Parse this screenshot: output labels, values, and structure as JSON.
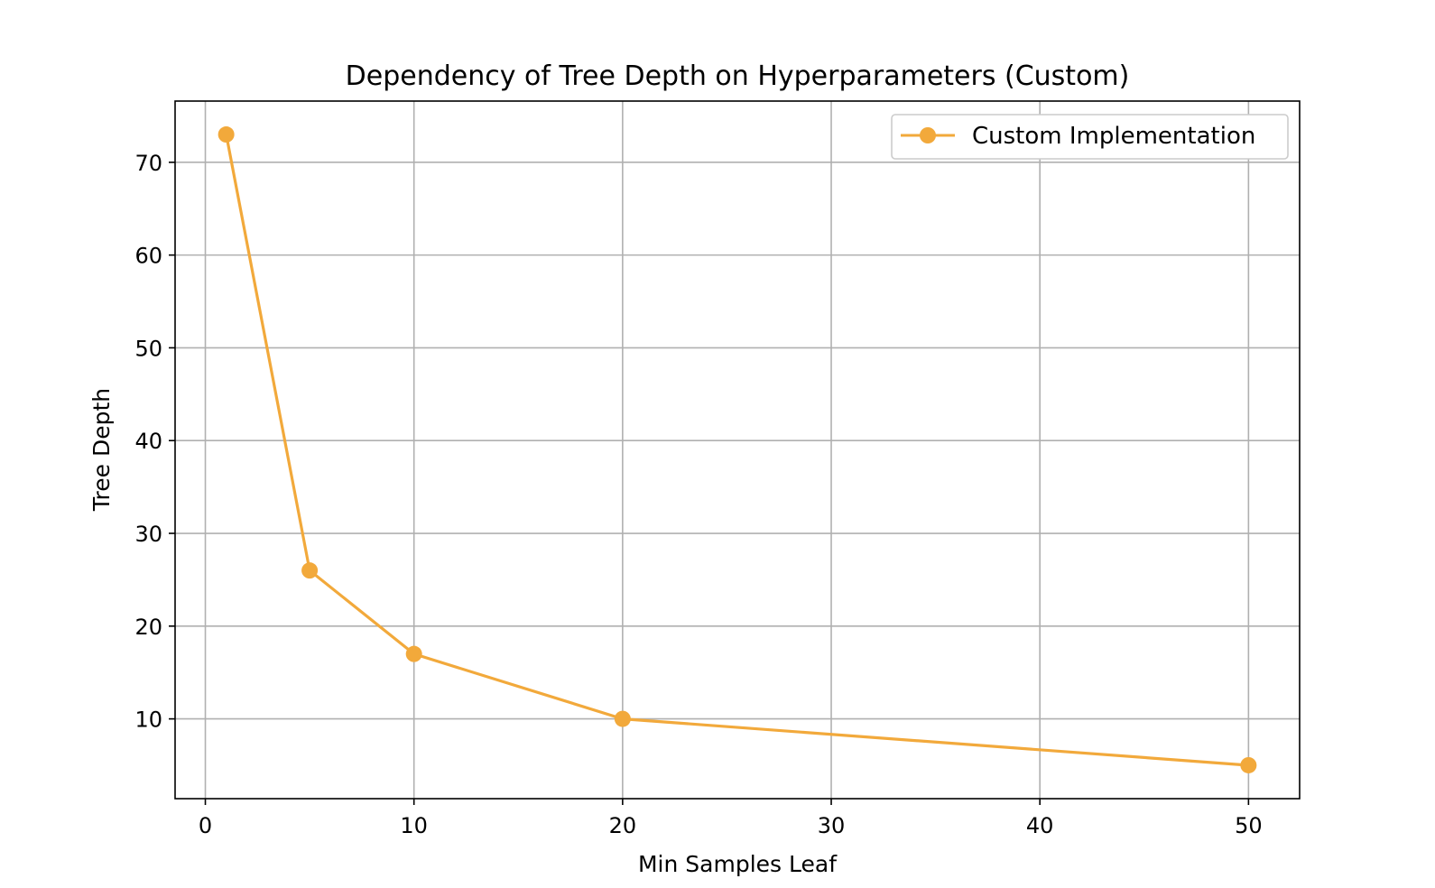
{
  "chart_data": {
    "type": "line",
    "title": "Dependency of Tree Depth on Hyperparameters (Custom)",
    "xlabel": "Min Samples Leaf",
    "ylabel": "Tree Depth",
    "xlim": [
      -1.45,
      52.45
    ],
    "ylim": [
      1.4,
      76.6
    ],
    "xticks": [
      0,
      10,
      20,
      30,
      40,
      50
    ],
    "yticks": [
      10,
      20,
      30,
      40,
      50,
      60,
      70
    ],
    "grid": true,
    "legend_position": "top-right",
    "series": [
      {
        "name": "Custom Implementation",
        "color": "#f2a93b",
        "marker": "circle",
        "x": [
          1,
          5,
          10,
          20,
          50
        ],
        "y": [
          73,
          26,
          17,
          10,
          5
        ]
      }
    ]
  }
}
